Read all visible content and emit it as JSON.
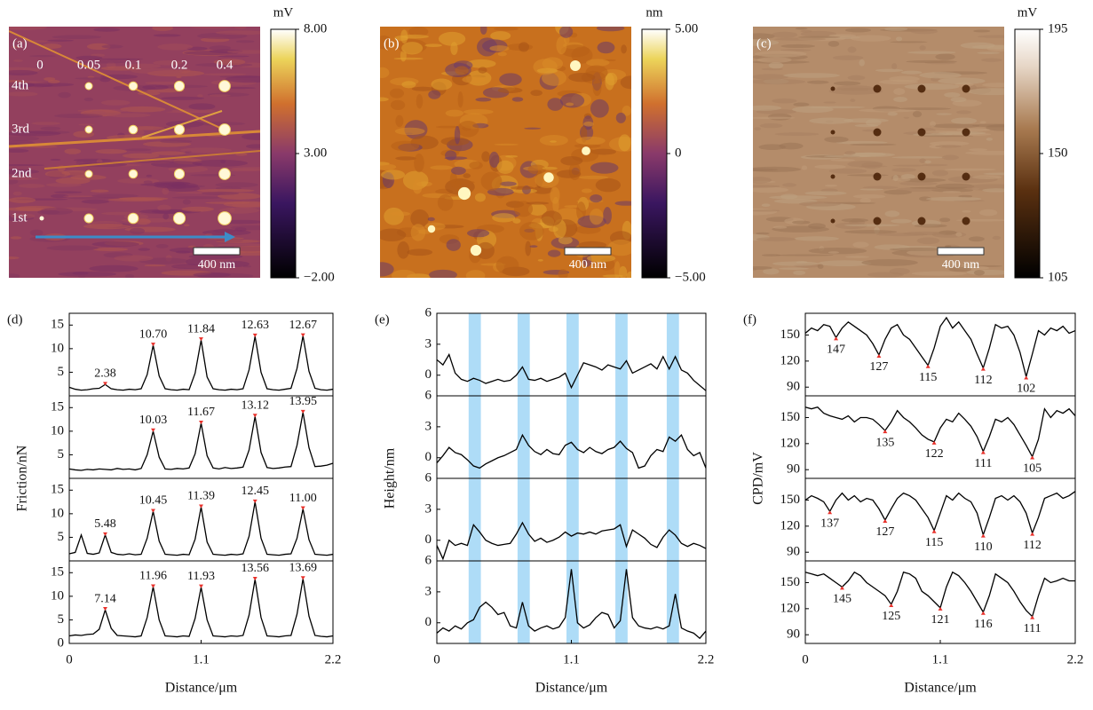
{
  "images": [
    {
      "label": "(a)",
      "unit": "mV",
      "clim": [
        -2,
        8
      ],
      "ticks": [
        {
          "value": 8,
          "label": "8.00"
        },
        {
          "value": 3,
          "label": "3.00"
        },
        {
          "value": -2,
          "label": "−2.00"
        }
      ],
      "scale_bar": "400 nm",
      "column_labels": [
        "0",
        "0.05",
        "0.1",
        "0.2",
        "0.4"
      ],
      "row_labels": [
        "4th",
        "3rd",
        "2nd",
        "1st"
      ]
    },
    {
      "label": "(b)",
      "unit": "nm",
      "clim": [
        -5,
        5
      ],
      "ticks": [
        {
          "value": 5,
          "label": "5.00"
        },
        0,
        {
          "value": -5,
          "label": "−5.00"
        }
      ],
      "scale_bar": "400 nm"
    },
    {
      "label": "(c)",
      "unit": "mV",
      "clim": [
        105,
        195
      ],
      "ticks": [
        195,
        150,
        105
      ],
      "scale_bar": "400 nm"
    }
  ],
  "chart_data": [
    {
      "type": "line",
      "label": "(d)",
      "ylabel": "Friction/nN",
      "xlabel": "Distance/μm",
      "color": "#000000",
      "label_color": "#e8302a",
      "xlim": [
        0,
        2.2
      ],
      "xticks": [
        0,
        1.1,
        2.2
      ],
      "ylim": [
        0,
        17.5
      ],
      "x": [
        0,
        0.05,
        0.1,
        0.15,
        0.2,
        0.25,
        0.3,
        0.35,
        0.4,
        0.45,
        0.5,
        0.55,
        0.6,
        0.65,
        0.7,
        0.75,
        0.8,
        0.85,
        0.9,
        0.95,
        1,
        1.05,
        1.1,
        1.15,
        1.2,
        1.25,
        1.3,
        1.35,
        1.4,
        1.45,
        1.5,
        1.55,
        1.6,
        1.65,
        1.7,
        1.75,
        1.8,
        1.85,
        1.9,
        1.95,
        2,
        2.05,
        2.1,
        2.15,
        2.2
      ],
      "panels": [
        {
          "yticks": [
            5,
            10,
            15
          ],
          "values": [
            1.8,
            1.4,
            1.2,
            1.3,
            1.5,
            1.6,
            2.4,
            1.5,
            1.3,
            1.2,
            1.4,
            1.3,
            1.5,
            4.5,
            10.7,
            4.2,
            1.5,
            1.3,
            1.2,
            1.4,
            1.3,
            4.8,
            11.8,
            4.0,
            1.5,
            1.3,
            1.2,
            1.4,
            1.3,
            1.5,
            5.5,
            12.6,
            5.0,
            1.5,
            1.3,
            1.2,
            1.4,
            1.6,
            5.8,
            12.7,
            5.2,
            1.6,
            1.3,
            1.2,
            1.4
          ],
          "labels": {
            "x": [
              0.3,
              0.7,
              1.1,
              1.55,
              1.95
            ],
            "values": [
              2.38,
              10.7,
              11.84,
              12.63,
              12.67
            ],
            "value_labels": [
              "2.38",
              "10.70",
              "11.84",
              "12.63",
              "12.67"
            ]
          }
        },
        {
          "yticks": [
            5,
            10,
            15
          ],
          "values": [
            2.0,
            1.8,
            1.7,
            1.9,
            1.8,
            2.0,
            1.9,
            1.8,
            2.1,
            1.9,
            2.0,
            1.8,
            2.1,
            5.0,
            10.0,
            4.5,
            2.0,
            1.9,
            2.1,
            2.0,
            2.2,
            5.2,
            11.7,
            4.8,
            2.2,
            2.0,
            2.3,
            2.1,
            2.2,
            2.4,
            6.0,
            13.1,
            5.5,
            2.3,
            2.1,
            2.2,
            2.4,
            2.5,
            7.0,
            14.0,
            6.5,
            2.5,
            2.6,
            2.8,
            3.2
          ],
          "labels": {
            "x": [
              0.7,
              1.1,
              1.55,
              1.95
            ],
            "values": [
              10.03,
              11.67,
              13.12,
              13.95
            ],
            "value_labels": [
              "10.03",
              "11.67",
              "13.12",
              "13.95"
            ]
          }
        },
        {
          "yticks": [
            5,
            10,
            15
          ],
          "values": [
            1.5,
            1.8,
            5.5,
            1.6,
            1.4,
            1.7,
            5.5,
            1.8,
            1.4,
            1.3,
            1.5,
            1.3,
            1.4,
            4.8,
            10.5,
            4.2,
            1.4,
            1.3,
            1.2,
            1.4,
            1.3,
            4.6,
            11.4,
            4.0,
            1.4,
            1.3,
            1.2,
            1.4,
            1.3,
            1.5,
            5.2,
            12.5,
            4.8,
            1.4,
            1.3,
            1.2,
            1.4,
            1.5,
            4.8,
            11.0,
            4.5,
            1.4,
            1.3,
            1.2,
            1.4
          ],
          "labels": {
            "x": [
              0.3,
              0.7,
              1.1,
              1.55,
              1.95
            ],
            "values": [
              5.48,
              10.45,
              11.39,
              12.45,
              11
            ],
            "value_labels": [
              "5.48",
              "10.45",
              "11.39",
              "12.45",
              "11.00"
            ]
          }
        },
        {
          "yticks": [
            0,
            5,
            10,
            15
          ],
          "values": [
            1.6,
            1.8,
            1.7,
            1.9,
            2.0,
            3.0,
            7.1,
            3.2,
            1.7,
            1.6,
            1.5,
            1.4,
            1.6,
            5.5,
            12.0,
            5.0,
            1.6,
            1.5,
            1.4,
            1.6,
            1.5,
            5.3,
            11.9,
            5.0,
            1.6,
            1.5,
            1.4,
            1.6,
            1.5,
            1.7,
            6.0,
            13.6,
            5.5,
            1.6,
            1.5,
            1.4,
            1.6,
            1.7,
            6.2,
            13.7,
            5.8,
            1.7,
            1.5,
            1.4,
            1.6
          ],
          "labels": {
            "x": [
              0.3,
              0.7,
              1.1,
              1.55,
              1.95
            ],
            "values": [
              7.14,
              11.96,
              11.93,
              13.56,
              13.69
            ],
            "value_labels": [
              "7.14",
              "11.96",
              "11.93",
              "13.56",
              "13.69"
            ]
          }
        }
      ]
    },
    {
      "type": "line",
      "label": "(e)",
      "ylabel": "Height/nm",
      "xlabel": "Distance/μm",
      "color": "#000000",
      "band_color": "#aedcf7",
      "xlim": [
        0,
        2.2
      ],
      "xticks": [
        0,
        1.1,
        2.2
      ],
      "ylim": [
        -2,
        6
      ],
      "bands": [
        [
          0.26,
          0.36
        ],
        [
          0.66,
          0.76
        ],
        [
          1.06,
          1.16
        ],
        [
          1.46,
          1.56
        ],
        [
          1.88,
          1.98
        ]
      ],
      "x": [
        0,
        0.05,
        0.1,
        0.15,
        0.2,
        0.25,
        0.3,
        0.35,
        0.4,
        0.45,
        0.5,
        0.55,
        0.6,
        0.65,
        0.7,
        0.75,
        0.8,
        0.85,
        0.9,
        0.95,
        1,
        1.05,
        1.1,
        1.15,
        1.2,
        1.25,
        1.3,
        1.35,
        1.4,
        1.45,
        1.5,
        1.55,
        1.6,
        1.65,
        1.7,
        1.75,
        1.8,
        1.85,
        1.9,
        1.95,
        2,
        2.05,
        2.1,
        2.15,
        2.2
      ],
      "panels": [
        {
          "yticks": [
            0,
            3,
            6
          ],
          "values": [
            1.5,
            1.0,
            2.0,
            0.2,
            -0.4,
            -0.6,
            -0.3,
            -0.5,
            -0.8,
            -0.6,
            -0.4,
            -0.6,
            -0.5,
            0.0,
            0.8,
            -0.4,
            -0.5,
            -0.3,
            -0.6,
            -0.4,
            -0.2,
            0.2,
            -1.2,
            0.0,
            1.2,
            1.0,
            0.8,
            0.5,
            1.0,
            0.8,
            0.6,
            1.4,
            0.2,
            0.5,
            0.8,
            1.1,
            0.6,
            1.8,
            0.6,
            1.8,
            0.5,
            0.2,
            -0.5,
            -1.0,
            -1.5
          ]
        },
        {
          "yticks": [
            0,
            3,
            6
          ],
          "values": [
            -0.5,
            0.2,
            1.0,
            0.5,
            0.3,
            -0.2,
            -0.8,
            -1.0,
            -0.6,
            -0.3,
            0.0,
            0.2,
            0.5,
            0.8,
            2.2,
            1.2,
            0.6,
            0.3,
            0.8,
            0.4,
            0.3,
            1.2,
            1.5,
            0.8,
            0.5,
            1.0,
            0.6,
            0.4,
            0.8,
            1.0,
            1.6,
            0.9,
            0.5,
            -1.0,
            -0.8,
            0.2,
            0.8,
            0.6,
            2.0,
            1.6,
            2.2,
            0.8,
            0.2,
            0.5,
            -1.0
          ]
        },
        {
          "yticks": [
            0,
            3,
            6
          ],
          "values": [
            -0.5,
            -1.8,
            0.0,
            -0.5,
            -0.3,
            -0.5,
            1.5,
            0.8,
            0.0,
            -0.3,
            -0.5,
            -0.4,
            -0.3,
            0.6,
            1.7,
            0.6,
            -0.1,
            0.2,
            -0.2,
            0.0,
            0.3,
            0.8,
            0.4,
            0.7,
            0.6,
            0.8,
            0.6,
            0.9,
            1.0,
            1.1,
            1.5,
            -0.6,
            1.0,
            0.6,
            0.2,
            -0.4,
            -0.7,
            0.3,
            1.0,
            0.5,
            -0.3,
            -0.6,
            -0.3,
            -0.5,
            -0.8
          ]
        },
        {
          "yticks": [
            0,
            3,
            6
          ],
          "values": [
            -1.0,
            -0.5,
            -0.8,
            -0.3,
            -0.6,
            0.0,
            0.3,
            1.5,
            2.0,
            1.5,
            0.8,
            1.0,
            -0.3,
            -0.5,
            2.0,
            -0.3,
            -0.8,
            -0.5,
            -0.3,
            -0.6,
            -0.4,
            0.5,
            5.2,
            0.0,
            -0.5,
            -0.2,
            0.5,
            1.0,
            0.8,
            -0.5,
            0.2,
            5.2,
            0.5,
            -0.3,
            -0.5,
            -0.6,
            -0.4,
            -0.6,
            -0.3,
            2.8,
            -0.5,
            -0.8,
            -1.0,
            -1.5,
            -0.8
          ]
        }
      ]
    },
    {
      "type": "line",
      "label": "(f)",
      "ylabel": "CPD/mV",
      "xlabel": "Distance/μm",
      "color": "#000000",
      "label_color": "#e8302a",
      "xlim": [
        0,
        2.2
      ],
      "xticks": [
        0,
        1.1,
        2.2
      ],
      "ylim": [
        80,
        175
      ],
      "x": [
        0,
        0.05,
        0.1,
        0.15,
        0.2,
        0.25,
        0.3,
        0.35,
        0.4,
        0.45,
        0.5,
        0.55,
        0.6,
        0.65,
        0.7,
        0.75,
        0.8,
        0.85,
        0.9,
        0.95,
        1,
        1.05,
        1.1,
        1.15,
        1.2,
        1.25,
        1.3,
        1.35,
        1.4,
        1.45,
        1.5,
        1.55,
        1.6,
        1.65,
        1.7,
        1.75,
        1.8,
        1.85,
        1.9,
        1.95,
        2,
        2.05,
        2.1,
        2.15,
        2.2
      ],
      "panels": [
        {
          "yticks": [
            90,
            120,
            150
          ],
          "values": [
            152,
            158,
            155,
            162,
            160,
            147,
            158,
            165,
            160,
            155,
            150,
            140,
            127,
            145,
            158,
            162,
            150,
            145,
            135,
            125,
            115,
            135,
            160,
            170,
            158,
            165,
            155,
            145,
            128,
            112,
            135,
            162,
            158,
            160,
            150,
            130,
            102,
            128,
            155,
            150,
            158,
            155,
            160,
            152,
            155
          ],
          "labels": {
            "x": [
              0.25,
              0.6,
              1,
              1.45,
              1.8
            ],
            "values": [
              147,
              127,
              115,
              112,
              102
            ]
          }
        },
        {
          "yticks": [
            90,
            120,
            150
          ],
          "values": [
            162,
            160,
            162,
            155,
            152,
            150,
            148,
            152,
            145,
            150,
            150,
            148,
            142,
            135,
            145,
            158,
            150,
            145,
            138,
            130,
            125,
            122,
            138,
            148,
            145,
            155,
            148,
            140,
            128,
            111,
            128,
            148,
            145,
            150,
            142,
            130,
            118,
            105,
            125,
            160,
            150,
            158,
            155,
            160,
            152
          ],
          "labels": {
            "x": [
              0.65,
              1.05,
              1.45,
              1.85
            ],
            "values": [
              135,
              122,
              111,
              105
            ]
          }
        },
        {
          "yticks": [
            90,
            120,
            150
          ],
          "values": [
            150,
            155,
            152,
            148,
            137,
            150,
            158,
            150,
            155,
            148,
            152,
            150,
            140,
            127,
            140,
            152,
            158,
            155,
            150,
            140,
            130,
            115,
            135,
            155,
            150,
            158,
            152,
            148,
            135,
            110,
            130,
            152,
            155,
            150,
            155,
            148,
            135,
            112,
            130,
            152,
            155,
            158,
            152,
            155,
            160
          ],
          "labels": {
            "x": [
              0.2,
              0.65,
              1.05,
              1.45,
              1.85
            ],
            "values": [
              137,
              127,
              115,
              110,
              112
            ]
          }
        },
        {
          "yticks": [
            90,
            120,
            150
          ],
          "values": [
            162,
            160,
            158,
            160,
            155,
            150,
            145,
            152,
            162,
            158,
            150,
            145,
            140,
            135,
            125,
            140,
            162,
            160,
            155,
            140,
            135,
            128,
            121,
            145,
            162,
            158,
            150,
            140,
            128,
            116,
            135,
            160,
            155,
            150,
            140,
            128,
            118,
            111,
            135,
            155,
            150,
            152,
            155,
            152,
            152
          ],
          "labels": {
            "x": [
              0.3,
              0.7,
              1.1,
              1.45,
              1.85
            ],
            "values": [
              145,
              125,
              121,
              116,
              111
            ]
          }
        }
      ]
    }
  ]
}
